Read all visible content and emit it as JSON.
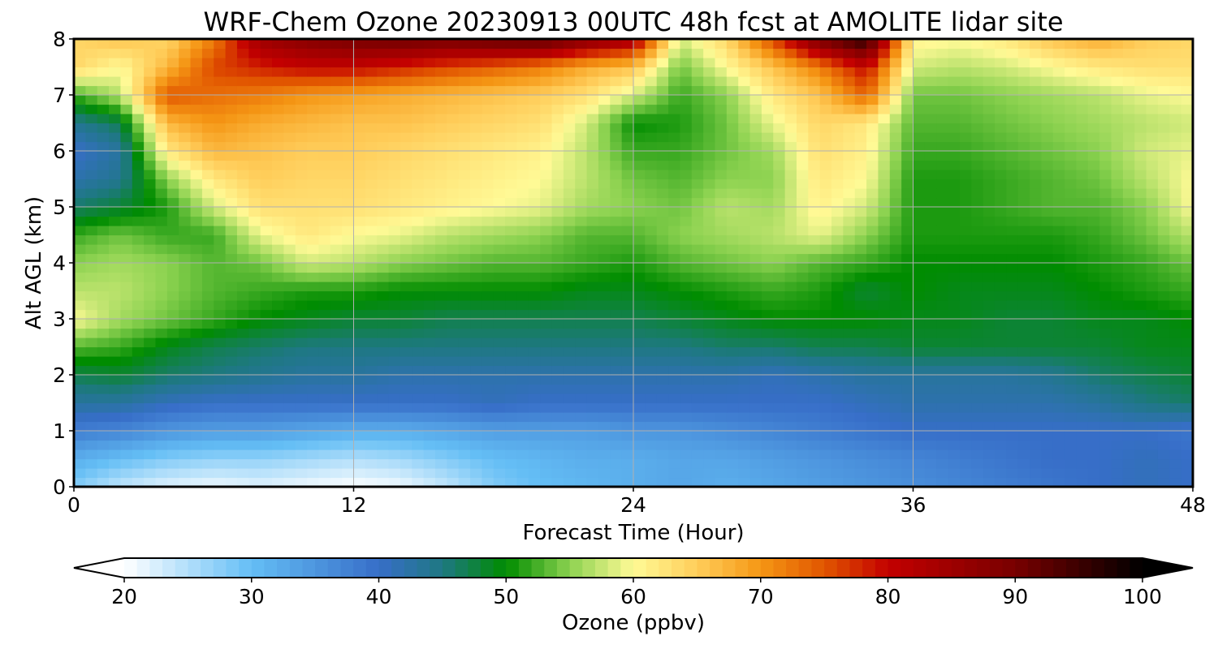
{
  "chart_data": {
    "type": "heatmap",
    "title": "WRF-Chem Ozone  20230913 00UTC 48h fcst at AMOLITE lidar site",
    "xlabel": "Forecast Time (Hour)",
    "ylabel": "Alt AGL (km)",
    "xlim": [
      0,
      48
    ],
    "ylim": [
      0,
      8
    ],
    "xticks": [
      "0",
      "12",
      "24",
      "36",
      "48"
    ],
    "yticks": [
      "0",
      "1",
      "2",
      "3",
      "4",
      "5",
      "6",
      "7",
      "8"
    ],
    "grid": true,
    "x": [
      0,
      2,
      4,
      6,
      8,
      10,
      12,
      14,
      16,
      18,
      20,
      22,
      24,
      26,
      28,
      30,
      32,
      34,
      36,
      38,
      40,
      42,
      44,
      46,
      48
    ],
    "y": [
      0,
      0.5,
      1,
      1.5,
      2,
      2.5,
      3,
      3.5,
      4,
      4.5,
      5,
      5.5,
      6,
      6.5,
      7,
      7.5,
      8
    ],
    "z": [
      [
        28,
        24,
        22,
        21,
        22,
        21,
        20,
        21,
        24,
        28,
        30,
        31,
        32,
        33,
        32,
        33,
        34,
        35,
        36,
        37,
        38,
        39,
        40,
        41,
        40
      ],
      [
        32,
        30,
        28,
        27,
        27,
        26,
        25,
        26,
        28,
        30,
        31,
        32,
        32,
        33,
        33,
        34,
        35,
        36,
        37,
        38,
        39,
        40,
        40,
        41,
        40
      ],
      [
        38,
        37,
        35,
        34,
        34,
        33,
        32,
        32,
        33,
        34,
        34,
        34,
        35,
        35,
        36,
        37,
        38,
        39,
        40,
        40,
        40,
        40,
        40,
        40,
        39
      ],
      [
        43,
        43,
        41,
        40,
        40,
        40,
        40,
        40,
        40,
        41,
        40,
        40,
        40,
        40,
        40,
        40,
        40,
        41,
        42,
        42,
        42,
        42,
        43,
        45,
        46
      ],
      [
        47,
        48,
        46,
        45,
        44,
        43,
        43,
        42,
        42,
        42,
        42,
        42,
        42,
        42,
        42,
        41,
        42,
        43,
        43,
        43,
        43,
        44,
        46,
        47,
        48
      ],
      [
        53,
        52,
        49,
        47,
        46,
        45,
        45,
        45,
        45,
        45,
        45,
        45,
        45,
        45,
        46,
        46,
        47,
        47,
        48,
        48,
        48,
        48,
        48,
        49,
        49
      ],
      [
        60,
        56,
        54,
        52,
        50,
        49,
        48,
        48,
        47,
        47,
        47,
        47,
        47,
        48,
        49,
        50,
        50,
        50,
        49,
        49,
        48,
        48,
        49,
        49,
        50
      ],
      [
        57,
        57,
        55,
        53,
        52,
        51,
        51,
        50,
        50,
        50,
        50,
        49,
        49,
        50,
        51,
        52,
        51,
        48,
        50,
        49,
        49,
        49,
        50,
        51,
        52
      ],
      [
        55,
        56,
        55,
        53,
        54,
        58,
        57,
        55,
        54,
        53,
        53,
        52,
        51,
        53,
        54,
        55,
        53,
        52,
        50,
        50,
        50,
        50,
        51,
        52,
        54
      ],
      [
        52,
        54,
        52,
        52,
        59,
        62,
        60,
        59,
        57,
        56,
        55,
        53,
        53,
        55,
        56,
        57,
        59,
        55,
        51,
        51,
        51,
        51,
        52,
        54,
        57
      ],
      [
        46,
        48,
        51,
        58,
        63,
        63,
        63,
        62,
        61,
        60,
        59,
        56,
        55,
        54,
        57,
        56,
        61,
        58,
        51,
        51,
        52,
        53,
        53,
        55,
        60
      ],
      [
        42,
        44,
        55,
        62,
        65,
        64,
        64,
        63,
        62,
        61,
        60,
        57,
        54,
        53,
        55,
        55,
        62,
        60,
        51,
        51,
        52,
        53,
        54,
        57,
        60
      ],
      [
        40,
        43,
        62,
        67,
        66,
        65,
        65,
        64,
        63,
        62,
        61,
        57,
        52,
        52,
        54,
        56,
        63,
        61,
        52,
        52,
        53,
        54,
        55,
        58,
        59
      ],
      [
        44,
        47,
        67,
        70,
        68,
        67,
        66,
        66,
        65,
        64,
        63,
        58,
        50,
        51,
        54,
        59,
        64,
        62,
        53,
        53,
        54,
        55,
        56,
        57,
        58
      ],
      [
        52,
        57,
        75,
        73,
        72,
        70,
        69,
        68,
        67,
        66,
        65,
        63,
        58,
        52,
        55,
        62,
        66,
        74,
        54,
        54,
        55,
        56,
        57,
        59,
        60
      ],
      [
        64,
        60,
        67,
        76,
        78,
        80,
        80,
        78,
        76,
        74,
        72,
        68,
        66,
        54,
        60,
        66,
        72,
        80,
        58,
        57,
        58,
        60,
        62,
        63,
        63
      ],
      [
        64,
        66,
        64,
        72,
        85,
        88,
        90,
        91,
        90,
        92,
        93,
        88,
        84,
        58,
        64,
        76,
        90,
        97,
        61,
        60,
        62,
        66,
        68,
        65,
        64
      ]
    ],
    "colorbar": {
      "label": "Ozone  (ppbv)",
      "min": 20,
      "max": 100,
      "ticks": [
        "20",
        "30",
        "40",
        "50",
        "60",
        "70",
        "80",
        "90",
        "100"
      ],
      "extend": "both"
    }
  }
}
